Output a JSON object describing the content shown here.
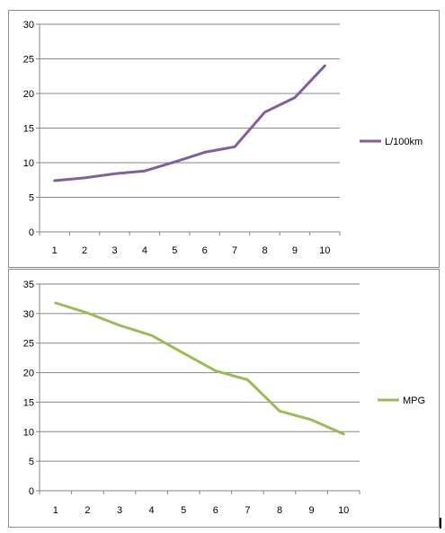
{
  "chart_data": [
    {
      "type": "line",
      "x": [
        1,
        2,
        3,
        4,
        5,
        6,
        7,
        8,
        9,
        10
      ],
      "categories": [
        "1",
        "2",
        "3",
        "4",
        "5",
        "6",
        "7",
        "8",
        "9",
        "10"
      ],
      "series": [
        {
          "name": "L/100km",
          "color": "#7F5FA0",
          "values": [
            7.4,
            7.8,
            8.4,
            8.8,
            10.1,
            11.5,
            12.3,
            17.3,
            19.4,
            24.0
          ]
        }
      ],
      "ylim": [
        0,
        30
      ],
      "yticks": [
        "0",
        "5",
        "10",
        "15",
        "20",
        "25",
        "30"
      ],
      "grid": true,
      "legend": "right"
    },
    {
      "type": "line",
      "x": [
        1,
        2,
        3,
        4,
        5,
        6,
        7,
        8,
        9,
        10
      ],
      "categories": [
        "1",
        "2",
        "3",
        "4",
        "5",
        "6",
        "7",
        "8",
        "9",
        "10"
      ],
      "series": [
        {
          "name": "MPG",
          "color": "#9BBB59",
          "values": [
            31.8,
            30.1,
            28.0,
            26.3,
            23.3,
            20.3,
            18.8,
            13.5,
            12.0,
            9.6
          ]
        }
      ],
      "ylim": [
        0,
        35
      ],
      "yticks": [
        "0",
        "5",
        "10",
        "15",
        "20",
        "25",
        "30",
        "35"
      ],
      "grid": true,
      "legend": "right"
    }
  ]
}
